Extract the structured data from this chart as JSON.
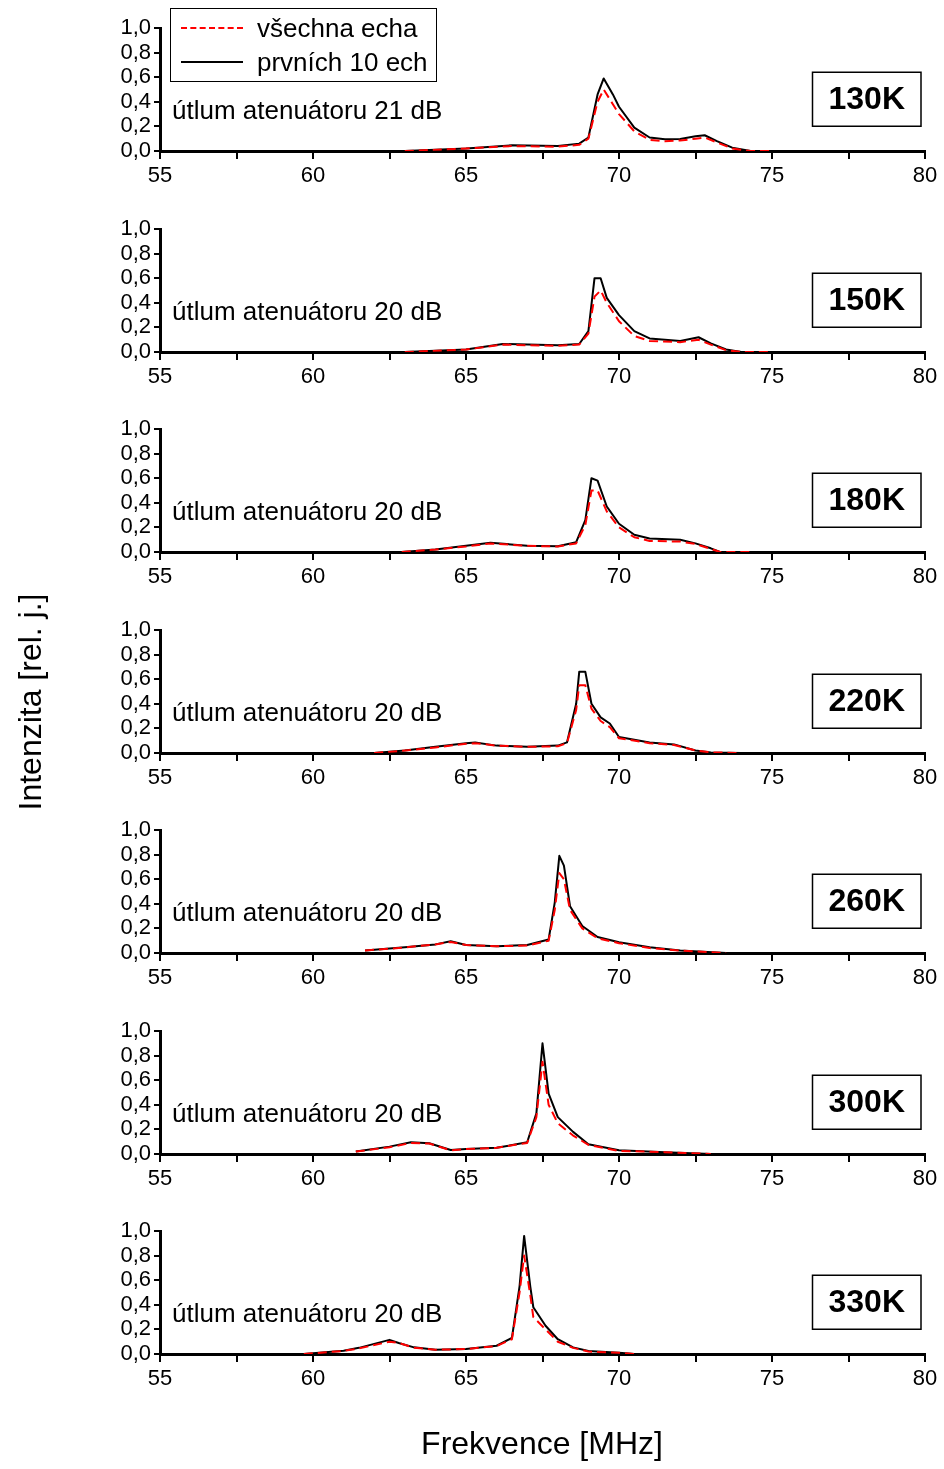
{
  "chart_data": [
    {
      "type": "line",
      "annotations": [
        "útlum atenuátoru 21 dB",
        "130K"
      ],
      "legend": "top left",
      "x": [
        63,
        65,
        66.5,
        68,
        68.7,
        69,
        69.3,
        69.5,
        69.8,
        70,
        70.5,
        71,
        71.5,
        72,
        72.5,
        72.8,
        73.2,
        73.7,
        74.3,
        75
      ],
      "series": [
        {
          "name": "všechna echa",
          "color": "#ff0000",
          "line_style": "dashed",
          "values": [
            0,
            0.02,
            0.04,
            0.035,
            0.05,
            0.1,
            0.4,
            0.5,
            0.38,
            0.3,
            0.16,
            0.09,
            0.08,
            0.085,
            0.1,
            0.11,
            0.07,
            0.02,
            0,
            0
          ]
        },
        {
          "name": "prvních 10 ech",
          "color": "#000000",
          "line_style": "solid",
          "values": [
            0,
            0.02,
            0.046,
            0.04,
            0.06,
            0.11,
            0.46,
            0.59,
            0.46,
            0.36,
            0.19,
            0.11,
            0.096,
            0.098,
            0.12,
            0.128,
            0.08,
            0.027,
            0,
            0
          ]
        }
      ],
      "xlim": [
        55,
        80
      ],
      "xticks": [
        55,
        {
          "value": 57.5,
          "label": null
        },
        60,
        {
          "value": 62.5,
          "label": null
        },
        65,
        {
          "value": 67.5,
          "label": null
        },
        70,
        {
          "value": 72.5,
          "label": null
        },
        75,
        {
          "value": 77.5,
          "label": null
        },
        80
      ],
      "ylim": [
        0,
        1
      ],
      "yticks": [
        {
          "value": 0,
          "label": "0,0"
        },
        {
          "value": 0.2,
          "label": "0,2"
        },
        {
          "value": 0.4,
          "label": "0,4"
        },
        {
          "value": 0.6,
          "label": "0,6"
        },
        {
          "value": 0.8,
          "label": "0,8"
        },
        {
          "value": 1,
          "label": "1,0"
        }
      ]
    },
    {
      "type": "line",
      "annotations": [
        "útlum atenuátoru 20 dB",
        "150K"
      ],
      "x": [
        63,
        65,
        66.2,
        68,
        68.7,
        69,
        69.2,
        69.4,
        69.6,
        70,
        70.5,
        71,
        72,
        72.6,
        73,
        73.5,
        74,
        75
      ],
      "series": [
        {
          "color": "#ff0000",
          "line_style": "dashed",
          "values": [
            0,
            0.02,
            0.06,
            0.05,
            0.06,
            0.15,
            0.45,
            0.5,
            0.4,
            0.25,
            0.13,
            0.09,
            0.08,
            0.1,
            0.06,
            0.015,
            0,
            0
          ]
        },
        {
          "color": "#000000",
          "line_style": "solid",
          "values": [
            0,
            0.02,
            0.065,
            0.055,
            0.065,
            0.17,
            0.6,
            0.6,
            0.44,
            0.3,
            0.17,
            0.11,
            0.09,
            0.12,
            0.07,
            0.02,
            0,
            0
          ]
        }
      ],
      "xlim": [
        55,
        80
      ],
      "xticks": [
        55,
        {
          "value": 57.5,
          "label": null
        },
        60,
        {
          "value": 62.5,
          "label": null
        },
        65,
        {
          "value": 67.5,
          "label": null
        },
        70,
        {
          "value": 72.5,
          "label": null
        },
        75,
        {
          "value": 77.5,
          "label": null
        },
        80
      ],
      "ylim": [
        0,
        1
      ],
      "yticks": [
        {
          "value": 0,
          "label": "0,0"
        },
        {
          "value": 0.2,
          "label": "0,2"
        },
        {
          "value": 0.4,
          "label": "0,4"
        },
        {
          "value": 0.6,
          "label": "0,6"
        },
        {
          "value": 0.8,
          "label": "0,8"
        },
        {
          "value": 1,
          "label": "1,0"
        }
      ]
    },
    {
      "type": "line",
      "annotations": [
        "útlum atenuátoru 20 dB",
        "180K"
      ],
      "x": [
        62.9,
        64,
        65,
        65.8,
        67,
        68,
        68.6,
        68.9,
        69.1,
        69.3,
        69.6,
        70,
        70.5,
        71,
        72,
        72.5,
        73,
        73.3,
        74.3
      ],
      "series": [
        {
          "color": "#ff0000",
          "line_style": "dashed",
          "values": [
            0,
            0.02,
            0.045,
            0.07,
            0.05,
            0.045,
            0.07,
            0.22,
            0.5,
            0.5,
            0.33,
            0.2,
            0.12,
            0.09,
            0.085,
            0.065,
            0.025,
            0,
            0
          ]
        },
        {
          "color": "#000000",
          "line_style": "solid",
          "values": [
            0,
            0.02,
            0.05,
            0.076,
            0.05,
            0.046,
            0.08,
            0.26,
            0.6,
            0.58,
            0.37,
            0.23,
            0.14,
            0.11,
            0.1,
            0.07,
            0.03,
            0,
            0
          ]
        }
      ],
      "xlim": [
        55,
        80
      ],
      "xticks": [
        55,
        {
          "value": 57.5,
          "label": null
        },
        60,
        {
          "value": 62.5,
          "label": null
        },
        65,
        {
          "value": 67.5,
          "label": null
        },
        70,
        {
          "value": 72.5,
          "label": null
        },
        75,
        {
          "value": 77.5,
          "label": null
        },
        80
      ],
      "ylim": [
        0,
        1
      ],
      "yticks": [
        {
          "value": 0,
          "label": "0,0"
        },
        {
          "value": 0.2,
          "label": "0,2"
        },
        {
          "value": 0.4,
          "label": "0,4"
        },
        {
          "value": 0.6,
          "label": "0,6"
        },
        {
          "value": 0.8,
          "label": "0,8"
        },
        {
          "value": 1,
          "label": "1,0"
        }
      ]
    },
    {
      "type": "line",
      "annotations": [
        "útlum atenuátoru 20 dB",
        "220K"
      ],
      "ylabel": "Intenzita [rel. j.]",
      "x": [
        62,
        63,
        64,
        65,
        65.3,
        66,
        67,
        68,
        68.3,
        68.6,
        68.7,
        68.9,
        69.1,
        69.4,
        69.7,
        70,
        71,
        71.8,
        72.5,
        73,
        74
      ],
      "series": [
        {
          "color": "#ff0000",
          "line_style": "dashed",
          "values": [
            0,
            0.02,
            0.045,
            0.075,
            0.08,
            0.06,
            0.05,
            0.055,
            0.08,
            0.35,
            0.55,
            0.55,
            0.36,
            0.26,
            0.21,
            0.12,
            0.08,
            0.065,
            0.02,
            0.005,
            0
          ]
        },
        {
          "color": "#000000",
          "line_style": "solid",
          "values": [
            0,
            0.02,
            0.05,
            0.08,
            0.086,
            0.06,
            0.05,
            0.06,
            0.086,
            0.4,
            0.66,
            0.66,
            0.4,
            0.29,
            0.24,
            0.13,
            0.086,
            0.07,
            0.02,
            0.005,
            0
          ]
        }
      ],
      "xlim": [
        55,
        80
      ],
      "xticks": [
        55,
        {
          "value": 57.5,
          "label": null
        },
        60,
        {
          "value": 62.5,
          "label": null
        },
        65,
        {
          "value": 67.5,
          "label": null
        },
        70,
        {
          "value": 72.5,
          "label": null
        },
        75,
        {
          "value": 77.5,
          "label": null
        },
        80
      ],
      "ylim": [
        0,
        1
      ],
      "yticks": [
        {
          "value": 0,
          "label": "0,0"
        },
        {
          "value": 0.2,
          "label": "0,2"
        },
        {
          "value": 0.4,
          "label": "0,4"
        },
        {
          "value": 0.6,
          "label": "0,6"
        },
        {
          "value": 0.8,
          "label": "0,8"
        },
        {
          "value": 1,
          "label": "1,0"
        }
      ]
    },
    {
      "type": "line",
      "annotations": [
        "útlum atenuátoru 20 dB",
        "260K"
      ],
      "x": [
        61.7,
        63,
        64,
        64.5,
        65,
        66,
        67,
        67.7,
        67.9,
        68.05,
        68.2,
        68.4,
        68.8,
        69.3,
        70,
        71,
        72,
        73.5
      ],
      "series": [
        {
          "color": "#ff0000",
          "line_style": "dashed",
          "values": [
            0.02,
            0.045,
            0.07,
            0.09,
            0.065,
            0.055,
            0.06,
            0.1,
            0.35,
            0.65,
            0.6,
            0.35,
            0.2,
            0.12,
            0.08,
            0.04,
            0.02,
            0
          ]
        },
        {
          "color": "#000000",
          "line_style": "solid",
          "values": [
            0.02,
            0.046,
            0.07,
            0.095,
            0.065,
            0.055,
            0.065,
            0.11,
            0.41,
            0.79,
            0.71,
            0.38,
            0.22,
            0.13,
            0.087,
            0.046,
            0.02,
            0
          ]
        }
      ],
      "xlim": [
        55,
        80
      ],
      "xticks": [
        55,
        {
          "value": 57.5,
          "label": null
        },
        60,
        {
          "value": 62.5,
          "label": null
        },
        65,
        {
          "value": 67.5,
          "label": null
        },
        70,
        {
          "value": 72.5,
          "label": null
        },
        75,
        {
          "value": 77.5,
          "label": null
        },
        80
      ],
      "ylim": [
        0,
        1
      ],
      "yticks": [
        {
          "value": 0,
          "label": "0,0"
        },
        {
          "value": 0.2,
          "label": "0,2"
        },
        {
          "value": 0.4,
          "label": "0,4"
        },
        {
          "value": 0.6,
          "label": "0,6"
        },
        {
          "value": 0.8,
          "label": "0,8"
        },
        {
          "value": 1,
          "label": "1,0"
        }
      ]
    },
    {
      "type": "line",
      "annotations": [
        "útlum atenuátoru 20 dB",
        "300K"
      ],
      "x": [
        61.4,
        62.5,
        63.2,
        63.8,
        64.5,
        65,
        66,
        67,
        67.3,
        67.5,
        67.7,
        68,
        68.5,
        69,
        70,
        71.5,
        73
      ],
      "series": [
        {
          "color": "#ff0000",
          "line_style": "dashed",
          "values": [
            0.02,
            0.055,
            0.09,
            0.085,
            0.03,
            0.04,
            0.05,
            0.09,
            0.3,
            0.75,
            0.4,
            0.25,
            0.15,
            0.075,
            0.025,
            0.015,
            0
          ]
        },
        {
          "color": "#000000",
          "line_style": "solid",
          "values": [
            0.02,
            0.06,
            0.095,
            0.087,
            0.033,
            0.04,
            0.05,
            0.095,
            0.33,
            0.9,
            0.49,
            0.3,
            0.18,
            0.08,
            0.03,
            0.015,
            0
          ]
        }
      ],
      "xlim": [
        55,
        80
      ],
      "xticks": [
        55,
        {
          "value": 57.5,
          "label": null
        },
        60,
        {
          "value": 62.5,
          "label": null
        },
        65,
        {
          "value": 67.5,
          "label": null
        },
        70,
        {
          "value": 72.5,
          "label": null
        },
        75,
        {
          "value": 77.5,
          "label": null
        },
        80
      ],
      "ylim": [
        0,
        1
      ],
      "yticks": [
        {
          "value": 0,
          "label": "0,0"
        },
        {
          "value": 0.2,
          "label": "0,2"
        },
        {
          "value": 0.4,
          "label": "0,4"
        },
        {
          "value": 0.6,
          "label": "0,6"
        },
        {
          "value": 0.8,
          "label": "0,8"
        },
        {
          "value": 1,
          "label": "1,0"
        }
      ]
    },
    {
      "type": "line",
      "annotations": [
        "útlum atenuátoru 20 dB",
        "330K"
      ],
      "xlabel": "Frekvence [MHz]",
      "x": [
        59.7,
        61,
        61.5,
        62.5,
        62.8,
        63.3,
        64,
        65,
        66,
        66.5,
        66.75,
        66.9,
        67.1,
        67.2,
        67.6,
        68,
        68.5,
        69,
        70,
        70.5
      ],
      "series": [
        {
          "color": "#ff0000",
          "line_style": "dashed",
          "values": [
            0,
            0.025,
            0.045,
            0.1,
            0.09,
            0.05,
            0.035,
            0.04,
            0.065,
            0.12,
            0.5,
            0.8,
            0.48,
            0.3,
            0.2,
            0.1,
            0.05,
            0.02,
            0.01,
            0
          ]
        },
        {
          "color": "#000000",
          "line_style": "solid",
          "values": [
            0,
            0.027,
            0.05,
            0.115,
            0.09,
            0.054,
            0.035,
            0.04,
            0.067,
            0.13,
            0.55,
            0.96,
            0.55,
            0.38,
            0.23,
            0.12,
            0.054,
            0.024,
            0.01,
            0
          ]
        }
      ],
      "xlim": [
        55,
        80
      ],
      "xticks": [
        55,
        {
          "value": 57.5,
          "label": null
        },
        60,
        {
          "value": 62.5,
          "label": null
        },
        65,
        {
          "value": 67.5,
          "label": null
        },
        70,
        {
          "value": 72.5,
          "label": null
        },
        75,
        {
          "value": 77.5,
          "label": null
        },
        80
      ],
      "ylim": [
        0,
        1
      ],
      "yticks": [
        {
          "value": 0,
          "label": "0,0"
        },
        {
          "value": 0.2,
          "label": "0,2"
        },
        {
          "value": 0.4,
          "label": "0,4"
        },
        {
          "value": 0.6,
          "label": "0,6"
        },
        {
          "value": 0.8,
          "label": "0,8"
        },
        {
          "value": 1,
          "label": "1,0"
        }
      ]
    }
  ]
}
